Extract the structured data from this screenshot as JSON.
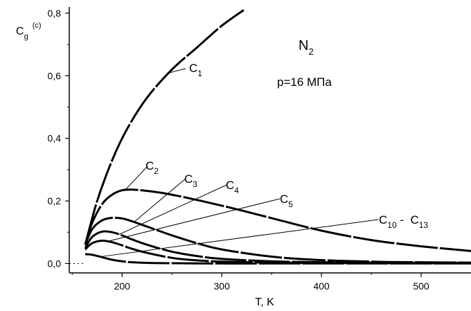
{
  "chart_data": {
    "type": "line",
    "xlabel": "T, K",
    "ylabel": {
      "main": "C",
      "sub": "g",
      "sup": "(c)"
    },
    "xlim": [
      147,
      550
    ],
    "ylim": [
      -0.03,
      0.82
    ],
    "xticks": [
      200,
      300,
      400,
      500
    ],
    "xtick_labels": [
      "200",
      "300",
      "400",
      "500"
    ],
    "yticks": [
      0.0,
      0.2,
      0.4,
      0.6,
      0.8
    ],
    "ytick_labels": [
      "0,0",
      "0,2",
      "0,4",
      "0,6",
      "0,8"
    ],
    "grid": false,
    "reference_line": {
      "y": 0,
      "style": "dotted"
    },
    "annotations": {
      "species": {
        "main": "N",
        "sub": "2"
      },
      "pressure": "p=16 МПа"
    },
    "series": [
      {
        "name": "C1",
        "x": [
          163,
          175,
          190,
          205,
          225,
          250,
          275,
          300,
          322
        ],
        "y": [
          0.06,
          0.2,
          0.33,
          0.43,
          0.53,
          0.62,
          0.69,
          0.76,
          0.81
        ]
      },
      {
        "name": "C2",
        "x": [
          163,
          170,
          180,
          190,
          200,
          210,
          225,
          250,
          300,
          350,
          400,
          450,
          500,
          550
        ],
        "y": [
          0.06,
          0.13,
          0.19,
          0.22,
          0.234,
          0.236,
          0.232,
          0.22,
          0.185,
          0.145,
          0.105,
          0.075,
          0.055,
          0.04
        ]
      },
      {
        "name": "C3",
        "x": [
          163,
          170,
          180,
          190,
          200,
          210,
          225,
          250,
          275,
          300,
          350,
          400,
          450,
          500,
          550
        ],
        "y": [
          0.06,
          0.11,
          0.138,
          0.146,
          0.144,
          0.135,
          0.118,
          0.09,
          0.065,
          0.045,
          0.022,
          0.011,
          0.006,
          0.004,
          0.003
        ]
      },
      {
        "name": "C4",
        "x": [
          163,
          170,
          180,
          190,
          200,
          210,
          225,
          250,
          275,
          300,
          350,
          400,
          450,
          500,
          550
        ],
        "y": [
          0.05,
          0.085,
          0.102,
          0.1,
          0.09,
          0.077,
          0.06,
          0.038,
          0.024,
          0.015,
          0.007,
          0.004,
          0.003,
          0.002,
          0.002
        ]
      },
      {
        "name": "C5",
        "x": [
          163,
          170,
          180,
          190,
          200,
          210,
          225,
          250,
          275,
          300,
          350,
          400,
          500,
          550
        ],
        "y": [
          0.045,
          0.065,
          0.073,
          0.068,
          0.058,
          0.047,
          0.034,
          0.018,
          0.01,
          0.006,
          0.003,
          0.002,
          0.001,
          0.001
        ]
      },
      {
        "name": "C10 - C13",
        "x": [
          163,
          170,
          180,
          190,
          200,
          210,
          225,
          250,
          300,
          350,
          400,
          500,
          550
        ],
        "y": [
          0.03,
          0.028,
          0.02,
          0.012,
          0.007,
          0.004,
          0.002,
          0.001,
          0.0,
          0.0,
          0.0,
          0.0,
          0.0
        ]
      }
    ],
    "curve_labels": [
      {
        "main": "C",
        "sub": "1",
        "curve": "C1",
        "at_x": 247
      },
      {
        "main": "C",
        "sub": "2",
        "curve": "C2",
        "at_x": 203
      },
      {
        "main": "C",
        "sub": "3",
        "curve": "C3",
        "at_x": 212
      },
      {
        "main": "C",
        "sub": "4",
        "curve": "C4",
        "at_x": 197
      },
      {
        "main": "C",
        "sub": "5",
        "curve": "C5",
        "at_x": 185
      },
      {
        "main": "C",
        "sub": "10",
        "main2": " -  C",
        "sub2": "13",
        "curve": "C10 - C13",
        "at_x": 178
      }
    ]
  }
}
